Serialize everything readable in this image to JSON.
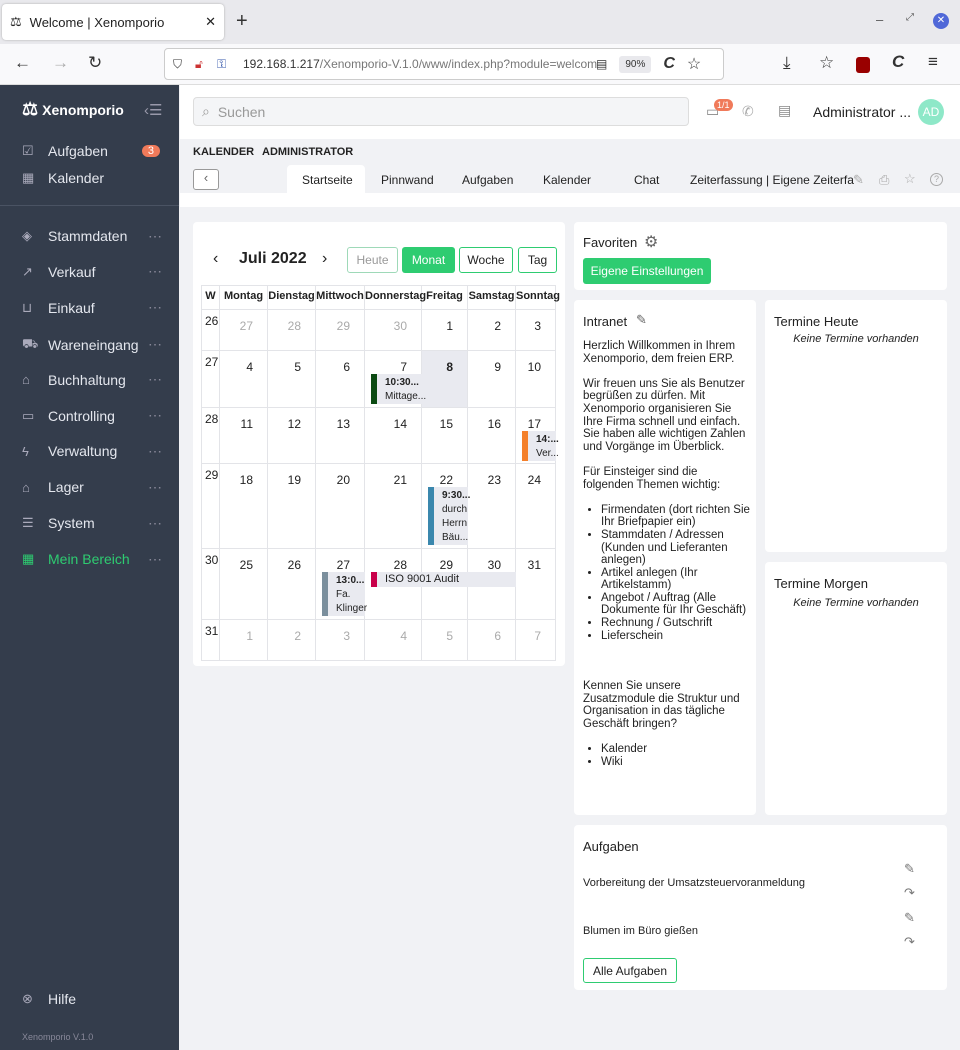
{
  "browser": {
    "tab_title": "Welcome | Xenomporio",
    "url_host": "192.168.1.217",
    "url_path": "/Xenomporio-V.1.0/www/index.php?module=welcom",
    "zoom": "90%"
  },
  "sidebar": {
    "brand": "Xenomporio",
    "top_items": [
      {
        "label": "Aufgaben",
        "badge": "3",
        "icon": "task-icon"
      },
      {
        "label": "Kalender",
        "icon": "calendar-icon"
      }
    ],
    "items": [
      {
        "label": "Stammdaten",
        "icon": "layers-icon"
      },
      {
        "label": "Verkauf",
        "icon": "trend-icon"
      },
      {
        "label": "Einkauf",
        "icon": "basket-icon"
      },
      {
        "label": "Wareneingang",
        "icon": "cart-icon"
      },
      {
        "label": "Buchhaltung",
        "icon": "bank-icon"
      },
      {
        "label": "Controlling",
        "icon": "controlling-icon"
      },
      {
        "label": "Verwaltung",
        "icon": "bolt-icon"
      },
      {
        "label": "Lager",
        "icon": "warehouse-icon"
      },
      {
        "label": "System",
        "icon": "sliders-icon"
      },
      {
        "label": "Mein Bereich",
        "icon": "grid-icon",
        "active": true
      }
    ],
    "help": "Hilfe",
    "version": "Xenomporio V.1.0"
  },
  "header": {
    "search_placeholder": "Suchen",
    "notif_badge": "1/1",
    "user": "Administrator ...",
    "avatar": "AD"
  },
  "breadcrumb": [
    "KALENDER",
    "ADMINISTRATOR"
  ],
  "tabs": [
    "Startseite",
    "Pinnwand",
    "Aufgaben",
    "Kalender",
    "Chat",
    "Zeiterfassung | Eigene Zeiterfa"
  ],
  "calendar": {
    "title": "Juli 2022",
    "today_btn": "Heute",
    "views": [
      "Monat",
      "Woche",
      "Tag"
    ],
    "headers": [
      "W",
      "Montag",
      "Dienstag",
      "Mittwoch",
      "Donnerstag",
      "Freitag",
      "Samstag",
      "Sonntag"
    ],
    "weeks": [
      {
        "w": "26",
        "days": [
          "27",
          "28",
          "29",
          "30",
          "1",
          "2",
          "3"
        ],
        "other": [
          0,
          1,
          2,
          3
        ]
      },
      {
        "w": "27",
        "days": [
          "4",
          "5",
          "6",
          "7",
          "8",
          "9",
          "10"
        ],
        "other": []
      },
      {
        "w": "28",
        "days": [
          "11",
          "12",
          "13",
          "14",
          "15",
          "16",
          "17"
        ],
        "other": []
      },
      {
        "w": "29",
        "days": [
          "18",
          "19",
          "20",
          "21",
          "22",
          "23",
          "24"
        ],
        "other": []
      },
      {
        "w": "30",
        "days": [
          "25",
          "26",
          "27",
          "28",
          "29",
          "30",
          "31"
        ],
        "other": []
      },
      {
        "w": "31",
        "days": [
          "1",
          "2",
          "3",
          "4",
          "5",
          "6",
          "7"
        ],
        "other": [
          0,
          1,
          2,
          3,
          4,
          5,
          6
        ]
      }
    ],
    "today": {
      "week": 1,
      "day": 4
    },
    "events": [
      {
        "week": 1,
        "day": 3,
        "time": "10:30...",
        "lines": [
          "Mittage..."
        ],
        "color": "#0b4a12"
      },
      {
        "week": 2,
        "day": 6,
        "time": "14:...",
        "lines": [
          "Ver..."
        ],
        "color": "#f4802b"
      },
      {
        "week": 3,
        "day": 4,
        "time": "9:30...",
        "lines": [
          "durch",
          "Herrn",
          "Bäu..."
        ],
        "color": "#3a87ad"
      },
      {
        "week": 4,
        "day": 2,
        "time": "13:0...",
        "lines": [
          "Fa.",
          "Klinger"
        ],
        "color": "#7b8f9d"
      },
      {
        "week": 4,
        "day": 3,
        "span": 3,
        "time": "",
        "lines": [
          "ISO 9001 Audit"
        ],
        "color": "#c8004a"
      }
    ]
  },
  "favoriten": {
    "title": "Favoriten",
    "button": "Eigene Einstellungen"
  },
  "intranet": {
    "title": "Intranet",
    "p1": "Herzlich Willkommen in Ihrem Xenomporio, dem freien ERP.",
    "p2": "Wir freuen uns Sie als Benutzer begrüßen zu dürfen. Mit Xenomporio organisieren Sie Ihre Firma schnell und einfach. Sie haben alle wichtigen Zahlen und Vorgänge im Überblick.",
    "p3": "Für Einsteiger sind die folgenden Themen wichtig:",
    "list1": [
      "Firmendaten (dort richten Sie Ihr Briefpapier ein)",
      "Stammdaten / Adressen (Kunden und Lieferanten anlegen)",
      "Artikel anlegen (Ihr Artikelstamm)",
      "Angebot / Auftrag (Alle Dokumente für Ihr Geschäft)",
      "Rechnung / Gutschrift",
      "Lieferschein"
    ],
    "p4": "Kennen Sie unsere Zusatzmodule die Struktur und Organisation in das tägliche Geschäft bringen?",
    "list2": [
      "Kalender",
      "Wiki"
    ]
  },
  "termine_heute": {
    "title": "Termine Heute",
    "empty": "Keine Termine vorhanden"
  },
  "termine_morgen": {
    "title": "Termine Morgen",
    "empty": "Keine Termine vorhanden"
  },
  "aufgaben": {
    "title": "Aufgaben",
    "items": [
      "Vorbereitung der Umsatzsteuervoranmeldung",
      "Blumen im Büro gießen"
    ],
    "button": "Alle Aufgaben"
  },
  "colors": {
    "accent": "#2ecc71",
    "sidebar": "#343d4c",
    "badge": "#f07a5a"
  }
}
